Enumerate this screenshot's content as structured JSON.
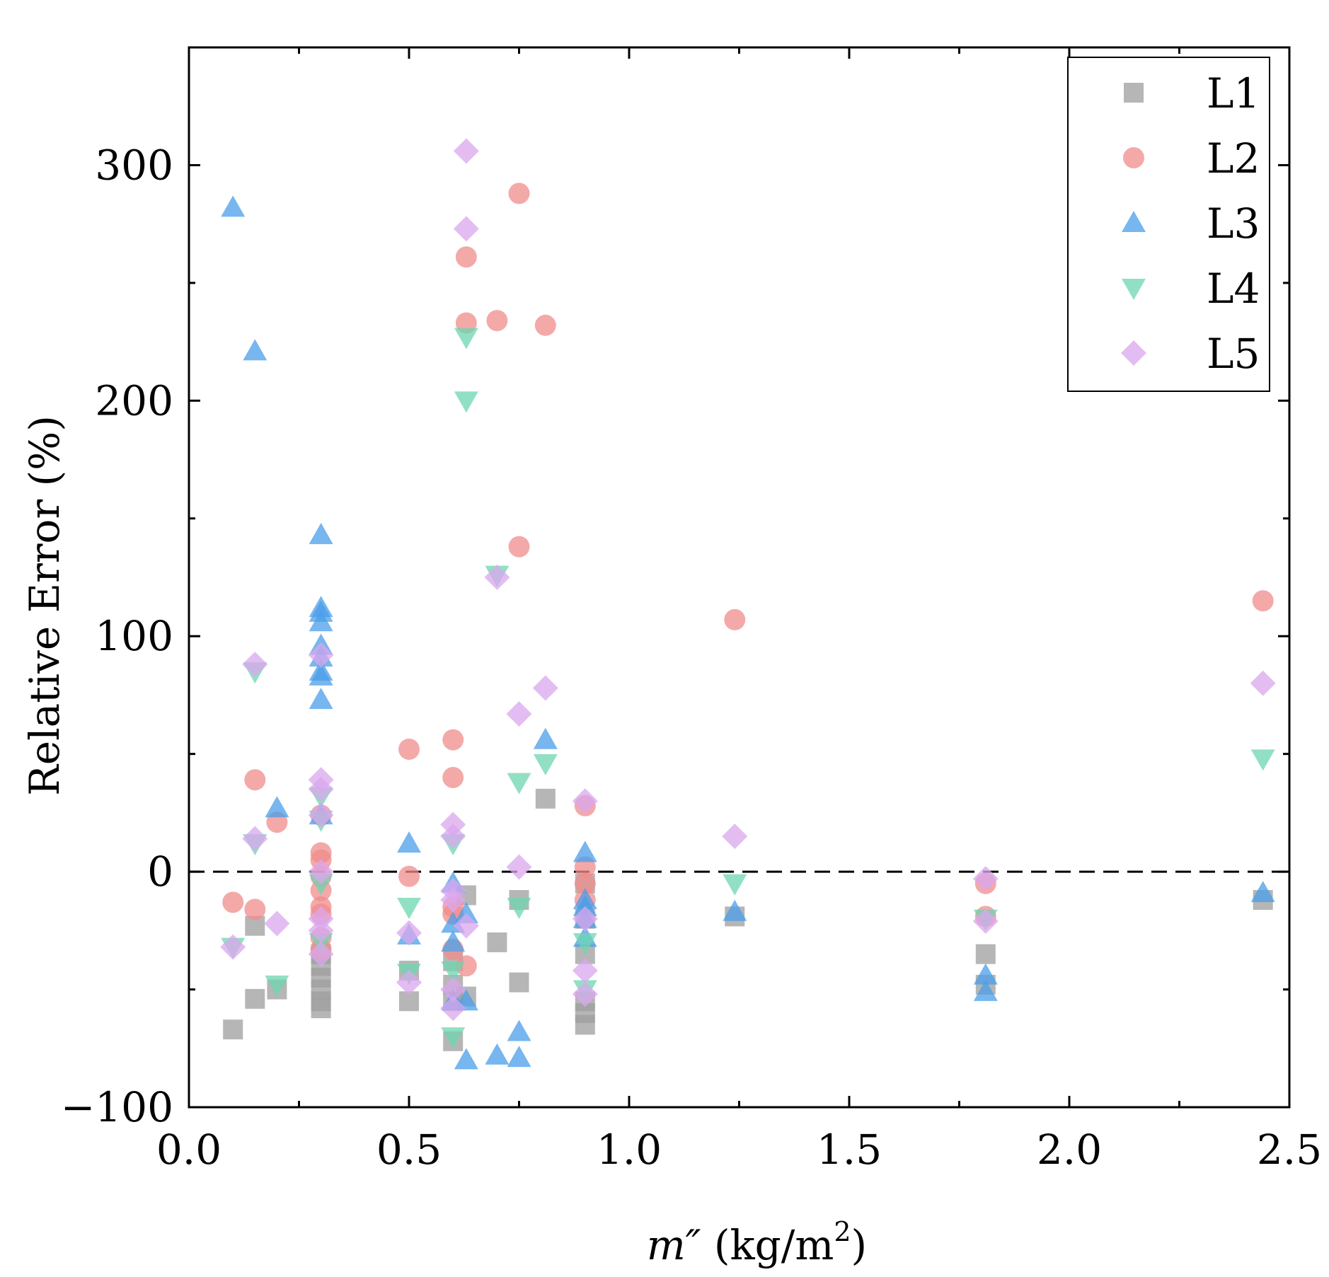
{
  "chart_data": {
    "type": "scatter",
    "title": "",
    "xlabel": "m″ (kg/m²)",
    "xlabel_var": "m″",
    "xlabel_unit_prefix": "(kg/m",
    "xlabel_unit_sup": "2",
    "xlabel_unit_suffix": ")",
    "ylabel": "Relative Error (%)",
    "xlim": [
      0.0,
      2.5
    ],
    "ylim": [
      -100,
      350
    ],
    "x_ticks": [
      0.0,
      0.5,
      1.0,
      1.5,
      2.0,
      2.5
    ],
    "x_tick_labels": [
      "0.0",
      "0.5",
      "1.0",
      "1.5",
      "2.0",
      "2.5"
    ],
    "y_ticks": [
      -100,
      0,
      100,
      200,
      300
    ],
    "y_tick_labels": [
      "−100",
      "0",
      "100",
      "200",
      "300"
    ],
    "reference_line": {
      "y": 0,
      "style": "dashed"
    },
    "grid": false,
    "legend_position": "top-right",
    "series": [
      {
        "name": "L1",
        "marker": "square",
        "color": "#9e9e9e",
        "points": [
          [
            0.1,
            -67
          ],
          [
            0.15,
            -23
          ],
          [
            0.15,
            -54
          ],
          [
            0.2,
            -50
          ],
          [
            0.3,
            -40
          ],
          [
            0.3,
            -45
          ],
          [
            0.3,
            -50
          ],
          [
            0.3,
            -55
          ],
          [
            0.3,
            -58
          ],
          [
            0.3,
            -35
          ],
          [
            0.5,
            -55
          ],
          [
            0.5,
            -42
          ],
          [
            0.6,
            -72
          ],
          [
            0.6,
            -55
          ],
          [
            0.6,
            -48
          ],
          [
            0.6,
            -38
          ],
          [
            0.63,
            -10
          ],
          [
            0.63,
            -53
          ],
          [
            0.7,
            -30
          ],
          [
            0.75,
            -47
          ],
          [
            0.75,
            -12
          ],
          [
            0.81,
            31
          ],
          [
            0.9,
            -65
          ],
          [
            0.9,
            -60
          ],
          [
            0.9,
            -55
          ],
          [
            0.9,
            -35
          ],
          [
            0.9,
            -20
          ],
          [
            0.9,
            -5
          ],
          [
            1.24,
            -19
          ],
          [
            1.81,
            -35
          ],
          [
            1.81,
            -48
          ],
          [
            2.44,
            -12
          ]
        ]
      },
      {
        "name": "L2",
        "marker": "circle",
        "color": "#f08c8c",
        "points": [
          [
            0.1,
            -13
          ],
          [
            0.15,
            39
          ],
          [
            0.15,
            -16
          ],
          [
            0.2,
            21
          ],
          [
            0.3,
            24
          ],
          [
            0.3,
            8
          ],
          [
            0.3,
            5
          ],
          [
            0.3,
            -2
          ],
          [
            0.3,
            -8
          ],
          [
            0.3,
            -15
          ],
          [
            0.3,
            -18
          ],
          [
            0.3,
            -28
          ],
          [
            0.3,
            -33
          ],
          [
            0.5,
            52
          ],
          [
            0.5,
            -2
          ],
          [
            0.6,
            56
          ],
          [
            0.6,
            40
          ],
          [
            0.6,
            -15
          ],
          [
            0.6,
            -18
          ],
          [
            0.6,
            -33
          ],
          [
            0.63,
            261
          ],
          [
            0.63,
            233
          ],
          [
            0.63,
            -40
          ],
          [
            0.7,
            234
          ],
          [
            0.75,
            288
          ],
          [
            0.75,
            138
          ],
          [
            0.81,
            232
          ],
          [
            0.9,
            28
          ],
          [
            0.9,
            2
          ],
          [
            0.9,
            -5
          ],
          [
            0.9,
            -12
          ],
          [
            1.24,
            107
          ],
          [
            1.81,
            -5
          ],
          [
            1.81,
            -19
          ],
          [
            2.44,
            115
          ]
        ]
      },
      {
        "name": "L3",
        "marker": "triangle-up",
        "color": "#4a9ee8",
        "points": [
          [
            0.1,
            282
          ],
          [
            0.15,
            221
          ],
          [
            0.2,
            27
          ],
          [
            0.3,
            143
          ],
          [
            0.3,
            112
          ],
          [
            0.3,
            110
          ],
          [
            0.3,
            106
          ],
          [
            0.3,
            96
          ],
          [
            0.3,
            91
          ],
          [
            0.3,
            85
          ],
          [
            0.3,
            83
          ],
          [
            0.3,
            73
          ],
          [
            0.3,
            24
          ],
          [
            0.5,
            12
          ],
          [
            0.5,
            -27
          ],
          [
            0.6,
            -5
          ],
          [
            0.6,
            -22
          ],
          [
            0.6,
            -30
          ],
          [
            0.6,
            -55
          ],
          [
            0.63,
            -18
          ],
          [
            0.63,
            -55
          ],
          [
            0.63,
            -80
          ],
          [
            0.7,
            -78
          ],
          [
            0.75,
            -68
          ],
          [
            0.75,
            -79
          ],
          [
            0.81,
            56
          ],
          [
            0.9,
            8
          ],
          [
            0.9,
            -12
          ],
          [
            0.9,
            -15
          ],
          [
            0.9,
            -20
          ],
          [
            0.9,
            -28
          ],
          [
            1.24,
            -17
          ],
          [
            1.81,
            -44
          ],
          [
            1.81,
            -51
          ],
          [
            2.44,
            -9
          ]
        ]
      },
      {
        "name": "L4",
        "marker": "triangle-down",
        "color": "#6ed6b0",
        "points": [
          [
            0.1,
            -32
          ],
          [
            0.15,
            85
          ],
          [
            0.15,
            12
          ],
          [
            0.2,
            -48
          ],
          [
            0.3,
            22
          ],
          [
            0.3,
            32
          ],
          [
            0.3,
            -5
          ],
          [
            0.3,
            -30
          ],
          [
            0.5,
            -15
          ],
          [
            0.5,
            -43
          ],
          [
            0.6,
            12
          ],
          [
            0.6,
            -42
          ],
          [
            0.6,
            -70
          ],
          [
            0.63,
            227
          ],
          [
            0.63,
            200
          ],
          [
            0.7,
            126
          ],
          [
            0.75,
            38
          ],
          [
            0.75,
            -15
          ],
          [
            0.81,
            46
          ],
          [
            0.9,
            -50
          ],
          [
            0.9,
            -30
          ],
          [
            1.24,
            -5
          ],
          [
            1.81,
            -20
          ],
          [
            2.44,
            48
          ]
        ]
      },
      {
        "name": "L5",
        "marker": "diamond",
        "color": "#d9a7ee",
        "points": [
          [
            0.1,
            -32
          ],
          [
            0.15,
            88
          ],
          [
            0.15,
            14
          ],
          [
            0.2,
            -22
          ],
          [
            0.3,
            92
          ],
          [
            0.3,
            39
          ],
          [
            0.3,
            35
          ],
          [
            0.3,
            24
          ],
          [
            0.3,
            0
          ],
          [
            0.3,
            -20
          ],
          [
            0.3,
            -25
          ],
          [
            0.3,
            -35
          ],
          [
            0.5,
            -26
          ],
          [
            0.5,
            -47
          ],
          [
            0.6,
            20
          ],
          [
            0.6,
            15
          ],
          [
            0.6,
            -8
          ],
          [
            0.6,
            -12
          ],
          [
            0.6,
            -50
          ],
          [
            0.6,
            -58
          ],
          [
            0.63,
            306
          ],
          [
            0.63,
            273
          ],
          [
            0.63,
            -23
          ],
          [
            0.7,
            125
          ],
          [
            0.75,
            67
          ],
          [
            0.75,
            2
          ],
          [
            0.81,
            78
          ],
          [
            0.9,
            30
          ],
          [
            0.9,
            -20
          ],
          [
            0.9,
            -42
          ],
          [
            0.9,
            -52
          ],
          [
            1.24,
            15
          ],
          [
            1.81,
            -3
          ],
          [
            1.81,
            -21
          ],
          [
            2.44,
            80
          ]
        ]
      }
    ]
  }
}
